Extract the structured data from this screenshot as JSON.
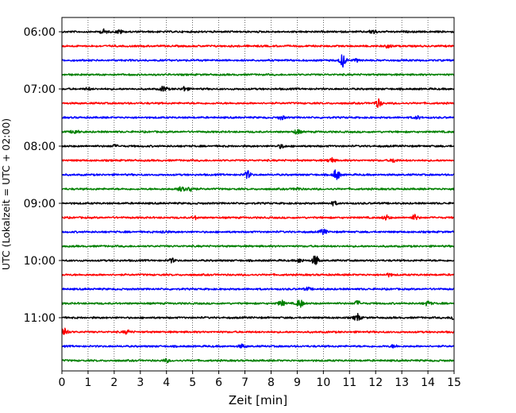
{
  "chart_data": {
    "type": "line",
    "chart_kind": "helicorder",
    "xlabel": "Zeit  [min]",
    "ylabel": "UTC (Lokalzeit = UTC + 02:00)",
    "xlim": [
      0,
      15
    ],
    "x_ticks": [
      0,
      1,
      2,
      3,
      4,
      5,
      6,
      7,
      8,
      9,
      10,
      11,
      12,
      13,
      14,
      15
    ],
    "x_tick_labels": [
      "0",
      "1",
      "2",
      "3",
      "4",
      "5",
      "6",
      "7",
      "8",
      "9",
      "10",
      "11",
      "12",
      "13",
      "14",
      "15"
    ],
    "y_tick_labels": [
      "06:00",
      "07:00",
      "08:00",
      "09:00",
      "10:00",
      "11:00"
    ],
    "trace_interval_minutes": 15,
    "grid": {
      "vertical_dotted": true,
      "horizontal": false
    },
    "color_cycle": [
      "#000000",
      "#ff0000",
      "#0000ff",
      "#008000"
    ],
    "series": [
      {
        "start": "06:00",
        "color": "#000000",
        "events": [
          [
            1.6,
            0.25
          ],
          [
            2.2,
            0.2
          ],
          [
            11.9,
            0.25
          ]
        ]
      },
      {
        "start": "06:15",
        "color": "#ff0000",
        "events": [
          [
            12.5,
            0.2
          ]
        ]
      },
      {
        "start": "06:30",
        "color": "#0000ff",
        "events": [
          [
            10.75,
            0.7
          ],
          [
            11.3,
            0.15
          ]
        ]
      },
      {
        "start": "06:45",
        "color": "#008000",
        "events": []
      },
      {
        "start": "07:00",
        "color": "#000000",
        "events": [
          [
            3.9,
            0.3
          ],
          [
            4.7,
            0.25
          ],
          [
            1.0,
            0.12
          ]
        ]
      },
      {
        "start": "07:15",
        "color": "#ff0000",
        "events": [
          [
            12.1,
            0.45
          ]
        ]
      },
      {
        "start": "07:30",
        "color": "#0000ff",
        "events": [
          [
            8.4,
            0.2
          ],
          [
            13.6,
            0.15
          ]
        ]
      },
      {
        "start": "07:45",
        "color": "#008000",
        "events": [
          [
            0.5,
            0.25
          ],
          [
            9.0,
            0.25
          ]
        ]
      },
      {
        "start": "08:00",
        "color": "#000000",
        "events": [
          [
            8.4,
            0.2
          ],
          [
            2.0,
            0.12
          ]
        ]
      },
      {
        "start": "08:15",
        "color": "#ff0000",
        "events": [
          [
            10.3,
            0.3
          ],
          [
            12.7,
            0.2
          ]
        ]
      },
      {
        "start": "08:30",
        "color": "#0000ff",
        "events": [
          [
            7.1,
            0.4
          ],
          [
            10.5,
            0.6
          ]
        ]
      },
      {
        "start": "08:45",
        "color": "#008000",
        "events": [
          [
            4.6,
            0.55
          ],
          [
            4.95,
            0.3
          ],
          [
            9.0,
            0.15
          ]
        ]
      },
      {
        "start": "09:00",
        "color": "#000000",
        "events": [
          [
            10.4,
            0.2
          ]
        ]
      },
      {
        "start": "09:15",
        "color": "#ff0000",
        "events": [
          [
            12.4,
            0.25
          ],
          [
            13.5,
            0.3
          ],
          [
            5.1,
            0.15
          ]
        ]
      },
      {
        "start": "09:30",
        "color": "#0000ff",
        "events": [
          [
            10.0,
            0.3
          ],
          [
            3.9,
            0.15
          ]
        ]
      },
      {
        "start": "09:45",
        "color": "#008000",
        "events": []
      },
      {
        "start": "10:00",
        "color": "#000000",
        "events": [
          [
            9.7,
            0.55
          ],
          [
            4.2,
            0.2
          ],
          [
            9.1,
            0.2
          ]
        ]
      },
      {
        "start": "10:15",
        "color": "#ff0000",
        "events": [
          [
            12.5,
            0.15
          ]
        ]
      },
      {
        "start": "10:30",
        "color": "#0000ff",
        "events": [
          [
            9.4,
            0.15
          ]
        ]
      },
      {
        "start": "10:45",
        "color": "#008000",
        "events": [
          [
            9.1,
            0.45
          ],
          [
            8.4,
            0.3
          ],
          [
            11.3,
            0.25
          ],
          [
            14.0,
            0.25
          ]
        ]
      },
      {
        "start": "11:00",
        "color": "#000000",
        "events": [
          [
            11.3,
            0.4
          ],
          [
            15.0,
            0.3
          ]
        ]
      },
      {
        "start": "11:15",
        "color": "#ff0000",
        "events": [
          [
            0.1,
            0.5
          ],
          [
            2.5,
            0.2
          ]
        ]
      },
      {
        "start": "11:30",
        "color": "#0000ff",
        "events": [
          [
            6.9,
            0.2
          ],
          [
            12.7,
            0.15
          ]
        ]
      },
      {
        "start": "11:45",
        "color": "#008000",
        "events": [
          [
            4.0,
            0.15
          ]
        ]
      }
    ]
  }
}
